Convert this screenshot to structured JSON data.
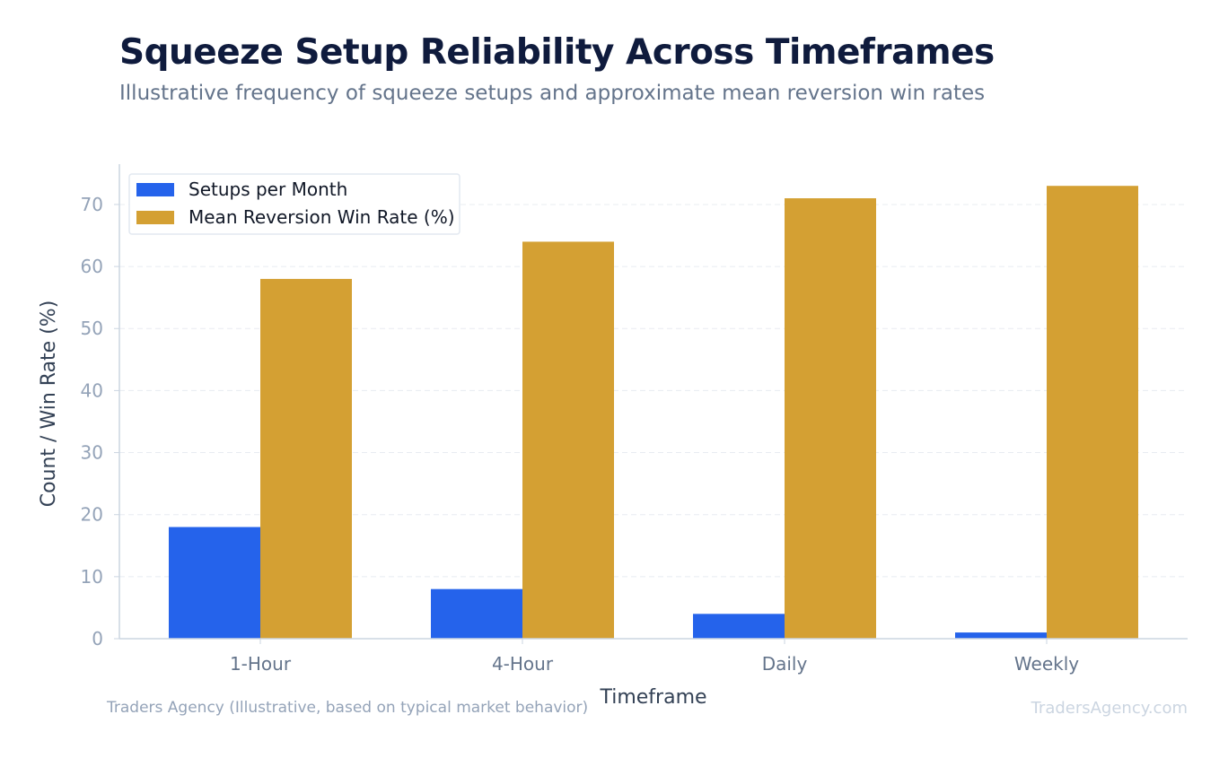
{
  "header": {
    "title": "Squeeze Setup Reliability Across Timeframes",
    "subtitle": "Illustrative frequency of squeeze setups and approximate mean reversion win rates"
  },
  "footer": {
    "source": "Traders Agency (Illustrative, based on typical market behavior)",
    "watermark": "TradersAgency.com"
  },
  "chart_data": {
    "type": "bar",
    "title": "Squeeze Setup Reliability Across Timeframes",
    "subtitle": "Illustrative frequency of squeeze setups and approximate mean reversion win rates",
    "xlabel": "Timeframe",
    "ylabel": "Count / Win Rate (%)",
    "categories": [
      "1-Hour",
      "4-Hour",
      "Daily",
      "Weekly"
    ],
    "series": [
      {
        "name": "Setups per Month",
        "values": [
          18,
          8,
          4,
          1
        ],
        "color": "#2563eb"
      },
      {
        "name": "Mean Reversion Win Rate (%)",
        "values": [
          58,
          64,
          71,
          73
        ],
        "color": "#d4a033"
      }
    ],
    "ylim": [
      0,
      76.5
    ],
    "yticks": [
      0,
      10,
      20,
      30,
      40,
      50,
      60,
      70
    ],
    "grid": true,
    "legend_position": "top-left"
  }
}
